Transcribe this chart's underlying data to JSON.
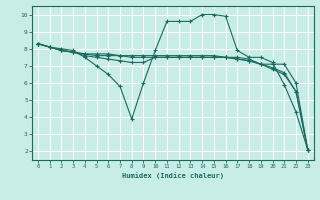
{
  "xlabel": "Humidex (Indice chaleur)",
  "ylabel": "",
  "xlim": [
    -0.5,
    23.5
  ],
  "ylim": [
    1.5,
    10.5
  ],
  "yticks": [
    2,
    3,
    4,
    5,
    6,
    7,
    8,
    9,
    10
  ],
  "xticks": [
    0,
    1,
    2,
    3,
    4,
    5,
    6,
    7,
    8,
    9,
    10,
    11,
    12,
    13,
    14,
    15,
    16,
    17,
    18,
    19,
    20,
    21,
    22,
    23
  ],
  "bg_color": "#c8ece6",
  "grid_color": "#ffffff",
  "line_color": "#1a6b5e",
  "lines": [
    {
      "x": [
        0,
        1,
        2,
        3,
        4,
        5,
        6,
        7,
        8,
        9,
        10,
        11,
        12,
        13,
        14,
        15,
        16,
        17,
        18,
        19,
        20,
        21,
        22,
        23
      ],
      "y": [
        8.3,
        8.1,
        8.0,
        7.9,
        7.5,
        7.0,
        6.5,
        5.8,
        3.9,
        6.0,
        7.9,
        9.6,
        9.6,
        9.6,
        10.0,
        10.0,
        9.9,
        7.9,
        7.5,
        7.5,
        7.2,
        5.9,
        4.3,
        2.1
      ],
      "marker": "+"
    },
    {
      "x": [
        0,
        1,
        2,
        3,
        4,
        5,
        6,
        7,
        8,
        9,
        10,
        11,
        12,
        13,
        14,
        15,
        16,
        17,
        18,
        19,
        20,
        21,
        22,
        23
      ],
      "y": [
        8.3,
        8.1,
        7.9,
        7.8,
        7.6,
        7.5,
        7.4,
        7.3,
        7.2,
        7.2,
        7.5,
        7.5,
        7.5,
        7.5,
        7.5,
        7.5,
        7.5,
        7.5,
        7.4,
        7.1,
        7.1,
        7.1,
        6.0,
        2.1
      ],
      "marker": "+"
    },
    {
      "x": [
        0,
        1,
        2,
        3,
        4,
        5,
        6,
        7,
        8,
        9,
        10,
        11,
        12,
        13,
        14,
        15,
        16,
        17,
        18,
        19,
        20,
        21,
        22,
        23
      ],
      "y": [
        8.3,
        8.1,
        7.9,
        7.8,
        7.7,
        7.6,
        7.6,
        7.6,
        7.5,
        7.5,
        7.5,
        7.5,
        7.5,
        7.5,
        7.5,
        7.5,
        7.5,
        7.4,
        7.3,
        7.1,
        6.8,
        6.5,
        5.5,
        2.1
      ],
      "marker": "+"
    },
    {
      "x": [
        0,
        1,
        2,
        3,
        4,
        5,
        6,
        7,
        8,
        9,
        10,
        11,
        12,
        13,
        14,
        15,
        16,
        17,
        18,
        19,
        20,
        21,
        22,
        23
      ],
      "y": [
        8.3,
        8.1,
        7.9,
        7.8,
        7.7,
        7.7,
        7.7,
        7.6,
        7.6,
        7.6,
        7.6,
        7.6,
        7.6,
        7.6,
        7.6,
        7.6,
        7.5,
        7.4,
        7.3,
        7.1,
        6.9,
        6.6,
        5.5,
        2.1
      ],
      "marker": "+"
    }
  ]
}
